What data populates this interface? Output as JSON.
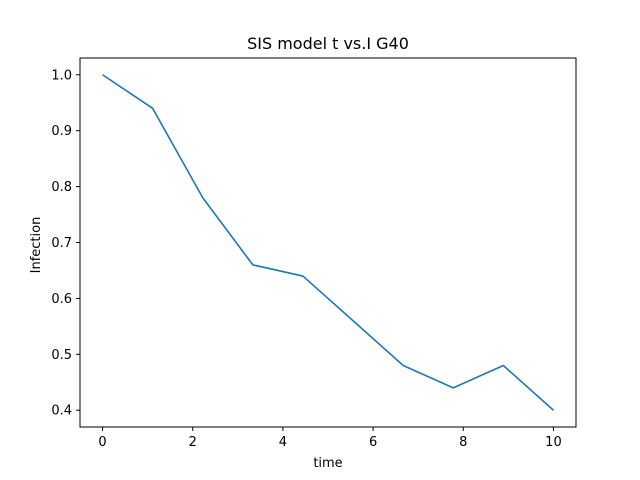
{
  "chart_data": {
    "type": "line",
    "title": "SIS model t vs.I G40",
    "xlabel": "time",
    "ylabel": "Infection",
    "xlim": [
      -0.5,
      10.5
    ],
    "ylim": [
      0.37,
      1.03
    ],
    "xticks": [
      0,
      2,
      4,
      6,
      8,
      10
    ],
    "xtick_labels": [
      "0",
      "2",
      "4",
      "6",
      "8",
      "10"
    ],
    "yticks": [
      0.4,
      0.5,
      0.6,
      0.7,
      0.8,
      0.9,
      1.0
    ],
    "ytick_labels": [
      "0.4",
      "0.5",
      "0.6",
      "0.7",
      "0.8",
      "0.9",
      "1.0"
    ],
    "grid": false,
    "series": [
      {
        "color": "#1f77b4",
        "x": [
          0,
          1.111,
          2.222,
          3.333,
          4.444,
          5.556,
          6.667,
          7.778,
          8.889,
          10
        ],
        "y": [
          1.0,
          0.94,
          0.78,
          0.66,
          0.64,
          0.56,
          0.48,
          0.44,
          0.48,
          0.4
        ]
      }
    ]
  }
}
